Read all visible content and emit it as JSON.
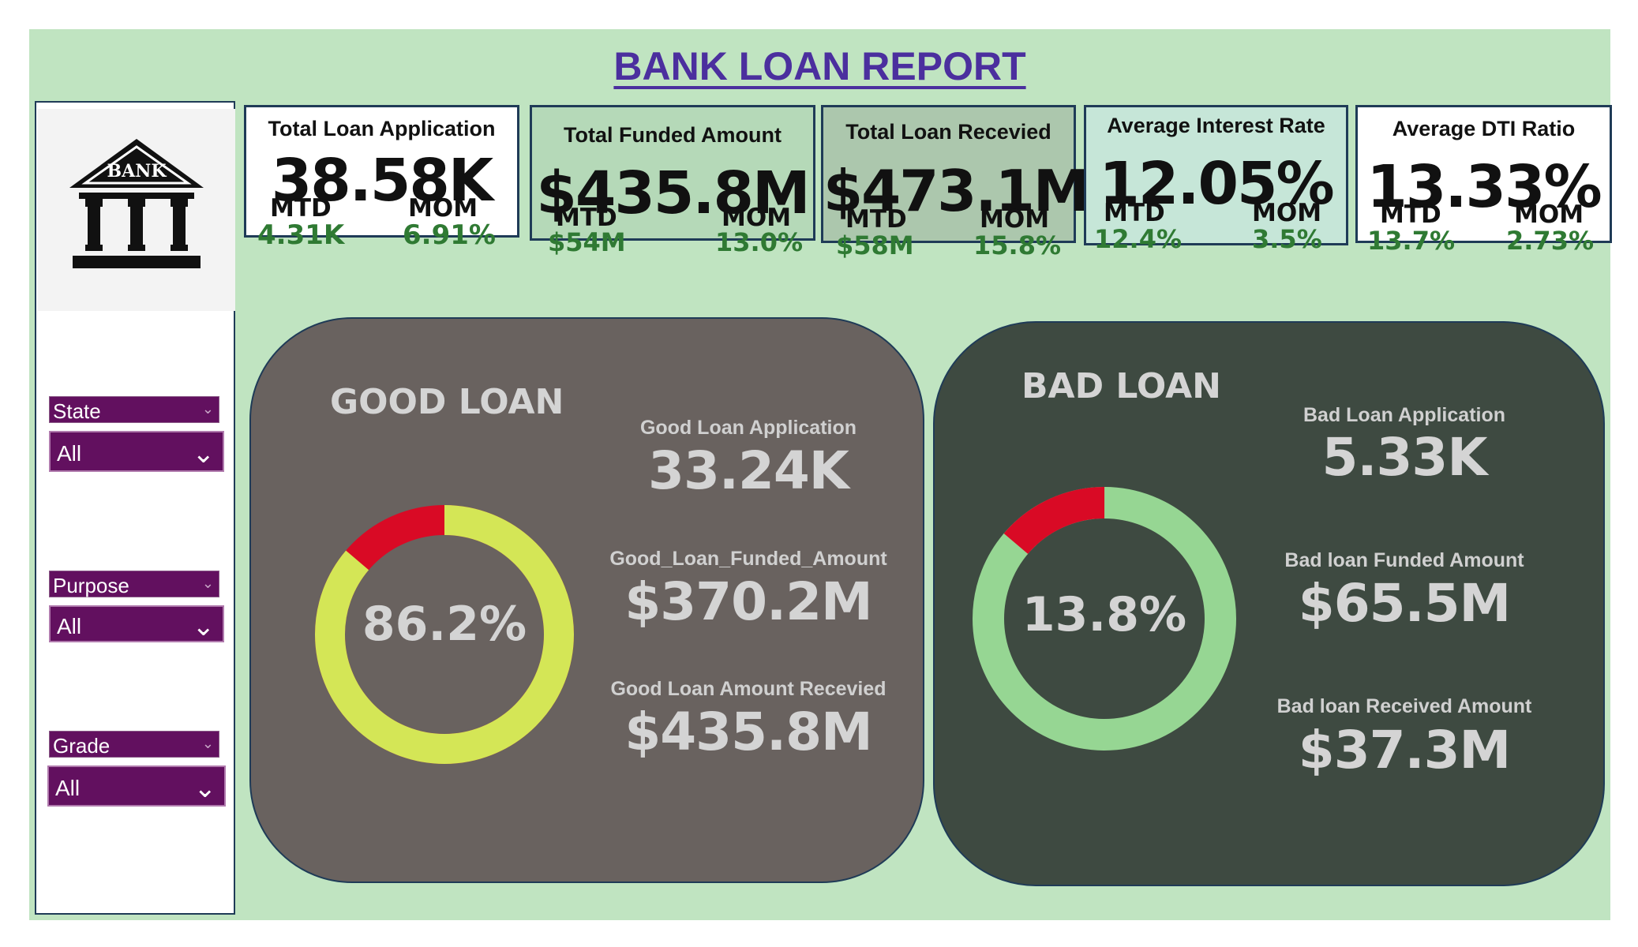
{
  "report": {
    "title": "BANK LOAN REPORT"
  },
  "logo": {
    "text": "BANK",
    "icon": "bank-building-icon"
  },
  "filters": [
    {
      "label": "State",
      "value": "All"
    },
    {
      "label": "Purpose",
      "value": "All"
    },
    {
      "label": "Grade",
      "value": "All"
    }
  ],
  "kpis": [
    {
      "title": "Total Loan Application",
      "value": "38.58K",
      "mtd_label": "MTD",
      "mtd": "4.31K",
      "mom_label": "MOM",
      "mom": "6.91%",
      "bg": "#ffffff"
    },
    {
      "title": "Total Funded Amount",
      "value": "$435.8M",
      "mtd_label": "MTD",
      "mtd": "$54M",
      "mom_label": "MOM",
      "mom": "13.0%",
      "bg": "#b5d9b8"
    },
    {
      "title": "Total Loan Recevied",
      "value": "$473.1M",
      "mtd_label": "MTD",
      "mtd": "$58M",
      "mom_label": "MOM",
      "mom": "15.8%",
      "bg": "#acc7ad"
    },
    {
      "title": "Average Interest Rate",
      "value": "12.05%",
      "mtd_label": "MTD",
      "mtd": "12.4%",
      "mom_label": "MOM",
      "mom": "3.5%",
      "bg": "#c6e6d8"
    },
    {
      "title": "Average DTI Ratio",
      "value": "13.33%",
      "mtd_label": "MTD",
      "mtd": "13.7%",
      "mom_label": "MOM",
      "mom": "2.73%",
      "bg": "#ffffff"
    }
  ],
  "good_loan": {
    "title": "GOOD LOAN",
    "percent": 86.2,
    "percent_label": "86.2%",
    "colors": {
      "primary": "#d4e656",
      "remainder": "#d90a25",
      "panel": "#69625f",
      "label": "#d4d4d4"
    },
    "metrics": [
      {
        "label": "Good Loan Application",
        "value": "33.24K"
      },
      {
        "label": "Good_Loan_Funded_Amount",
        "value": "$370.2M"
      },
      {
        "label": "Good Loan Amount Recevied",
        "value": "$435.8M"
      }
    ]
  },
  "bad_loan": {
    "title": "BAD LOAN",
    "percent": 13.8,
    "percent_label": "13.8%",
    "colors": {
      "primary": "#d90a25",
      "remainder": "#96d693",
      "panel": "#3e4a41",
      "label": "#d4d4d4"
    },
    "metrics": [
      {
        "label": "Bad Loan Application",
        "value": "5.33K"
      },
      {
        "label": "Bad loan Funded Amount",
        "value": "$65.5M"
      },
      {
        "label": "Bad loan Received Amount",
        "value": "$37.3M"
      }
    ]
  }
}
